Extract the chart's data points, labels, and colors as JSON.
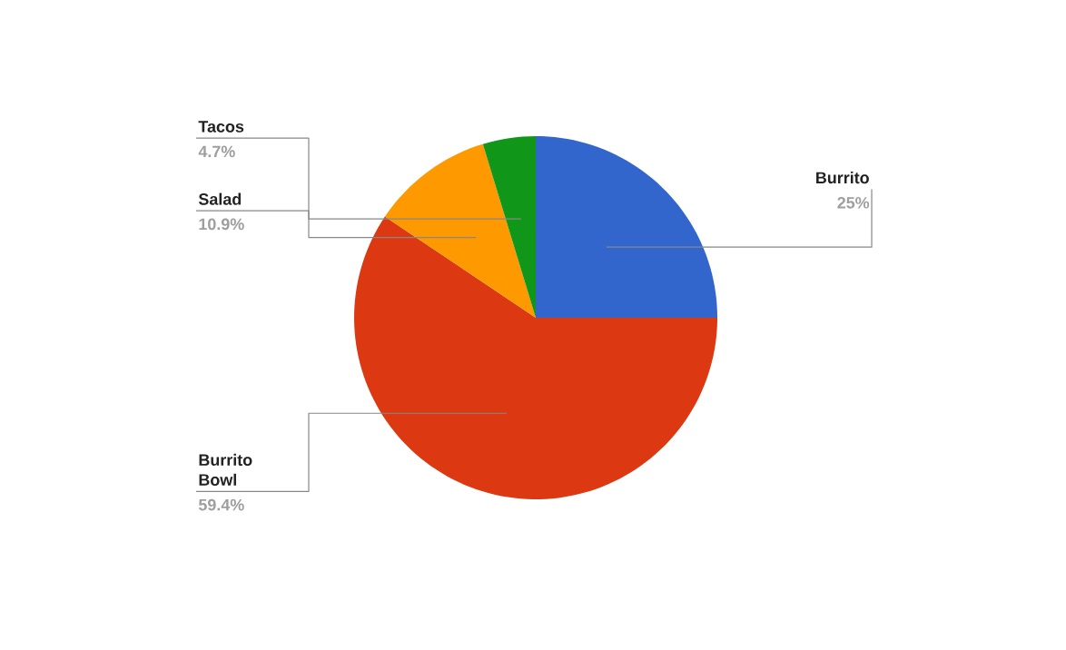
{
  "chart_data": {
    "type": "pie",
    "categories": [
      "Burrito",
      "Burrito Bowl",
      "Salad",
      "Tacos"
    ],
    "values": [
      25,
      59.4,
      10.9,
      4.7
    ],
    "value_labels": [
      "25%",
      "59.4%",
      "10.9%",
      "4.7%"
    ],
    "colors": [
      "#3366cc",
      "#dc3912",
      "#ff9900",
      "#109618"
    ]
  }
}
